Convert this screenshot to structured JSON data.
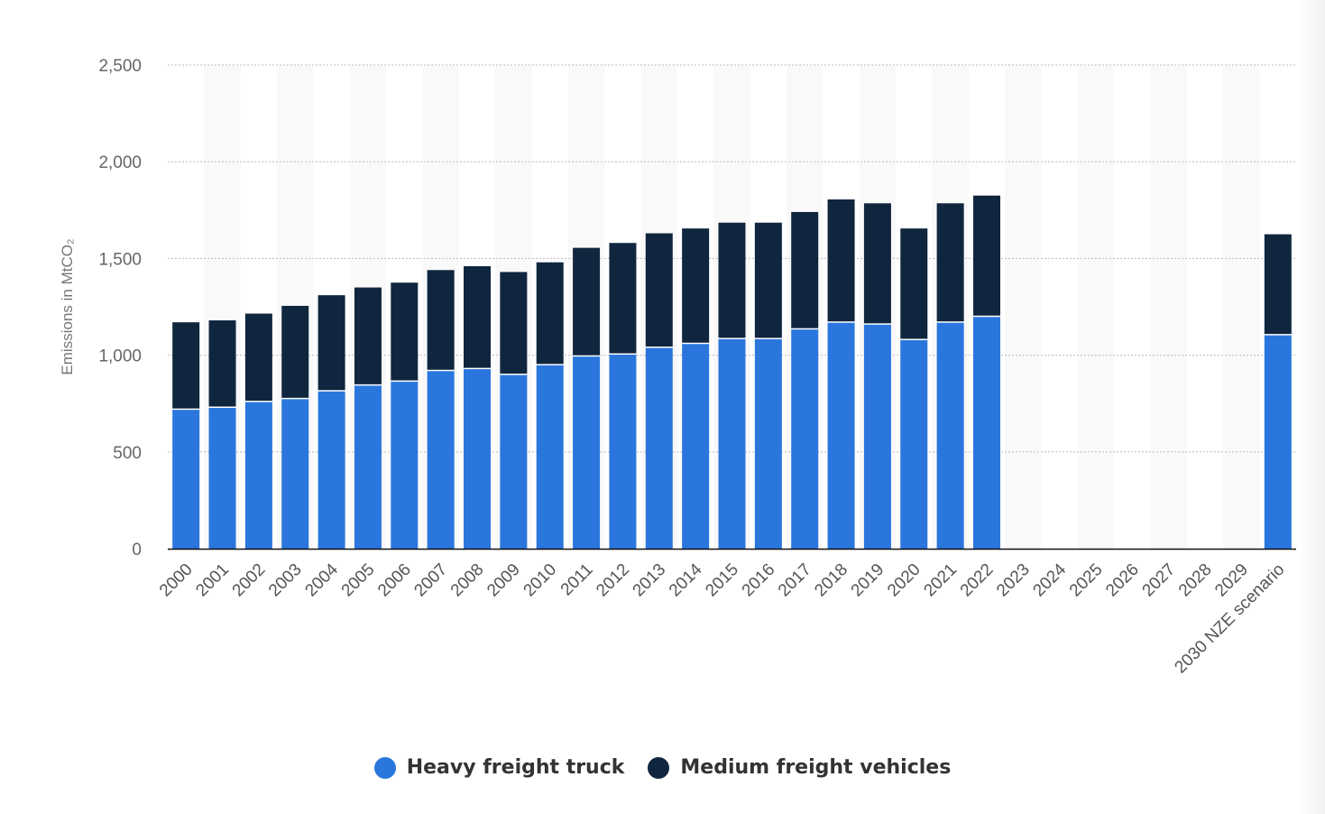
{
  "colors": {
    "heavy": "#2a76dd",
    "medium": "#10263f",
    "grid": "#bbbbbb",
    "band": "#f9f9f9",
    "axis": "#111111"
  },
  "chart_data": {
    "type": "bar",
    "stacked": true,
    "ylabel": "Emissions in MtCO₂",
    "xlabel": "",
    "ylim": [
      0,
      2500
    ],
    "yticks": [
      0,
      500,
      1000,
      1500,
      2000,
      2500
    ],
    "ytick_labels": [
      "0",
      "500",
      "1,000",
      "1,500",
      "2,000",
      "2,500"
    ],
    "grid": true,
    "legend_position": "bottom",
    "categories": [
      "2000",
      "2001",
      "2002",
      "2003",
      "2004",
      "2005",
      "2006",
      "2007",
      "2008",
      "2009",
      "2010",
      "2011",
      "2012",
      "2013",
      "2014",
      "2015",
      "2016",
      "2017",
      "2018",
      "2019",
      "2020",
      "2021",
      "2022",
      "2023",
      "2024",
      "2025",
      "2026",
      "2027",
      "2028",
      "2029",
      "2030 NZE scenario"
    ],
    "series": [
      {
        "name": "Heavy freight truck",
        "values": [
          720,
          730,
          760,
          775,
          815,
          845,
          865,
          920,
          930,
          900,
          950,
          995,
          1005,
          1040,
          1060,
          1085,
          1085,
          1135,
          1170,
          1160,
          1080,
          1170,
          1200,
          null,
          null,
          null,
          null,
          null,
          null,
          null,
          1105
        ]
      },
      {
        "name": "Medium freight vehicles",
        "values": [
          450,
          450,
          455,
          480,
          495,
          505,
          510,
          520,
          530,
          530,
          530,
          560,
          575,
          590,
          595,
          600,
          600,
          605,
          635,
          625,
          575,
          615,
          625,
          null,
          null,
          null,
          null,
          null,
          null,
          null,
          520
        ]
      }
    ]
  }
}
